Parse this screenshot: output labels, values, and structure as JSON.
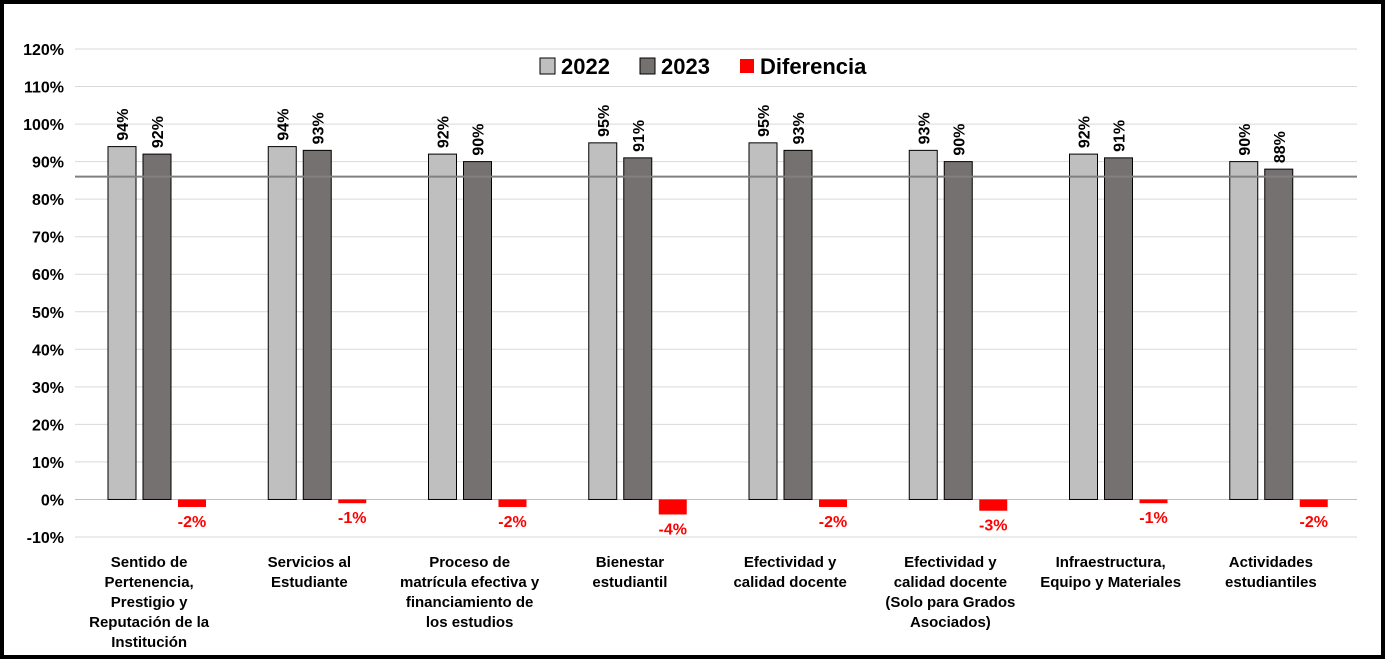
{
  "chart_data": {
    "type": "bar",
    "categories": [
      [
        "Sentido de",
        "Pertenencia,",
        "Prestigio y",
        "Reputación de la",
        "Institución"
      ],
      [
        "Servicios al",
        "Estudiante"
      ],
      [
        "Proceso de",
        "matrícula efectiva y",
        "financiamiento de",
        "los estudios"
      ],
      [
        "Bienestar",
        "estudiantil"
      ],
      [
        "Efectividad y",
        "calidad docente"
      ],
      [
        "Efectividad y",
        "calidad docente",
        "(Solo para Grados",
        "Asociados)"
      ],
      [
        "Infraestructura,",
        "Equipo y Materiales"
      ],
      [
        "Actividades",
        "estudiantiles"
      ]
    ],
    "series": [
      {
        "name": "2022",
        "values": [
          94,
          94,
          92,
          95,
          95,
          93,
          92,
          90
        ],
        "labels": [
          "94%",
          "94%",
          "92%",
          "95%",
          "95%",
          "93%",
          "92%",
          "90%"
        ],
        "color": "#bfbfbf"
      },
      {
        "name": "2023",
        "values": [
          92,
          93,
          90,
          91,
          93,
          90,
          91,
          88
        ],
        "labels": [
          "92%",
          "93%",
          "90%",
          "91%",
          "93%",
          "90%",
          "91%",
          "88%"
        ],
        "color": "#767171"
      },
      {
        "name": "Diferencia",
        "values": [
          -2,
          -1,
          -2,
          -4,
          -2,
          -3,
          -1,
          -2
        ],
        "labels": [
          "-2%",
          "-1%",
          "-2%",
          "-4%",
          "-2%",
          "-3%",
          "-1%",
          "-2%"
        ],
        "color": "#ff0000"
      }
    ],
    "ylim": [
      -10,
      120
    ],
    "yticks": [
      "-10%",
      "0%",
      "10%",
      "20%",
      "30%",
      "40%",
      "50%",
      "60%",
      "70%",
      "80%",
      "90%",
      "100%",
      "110%",
      "120%"
    ],
    "reference_line": 86,
    "grid": true,
    "legend_position": "top-center"
  }
}
